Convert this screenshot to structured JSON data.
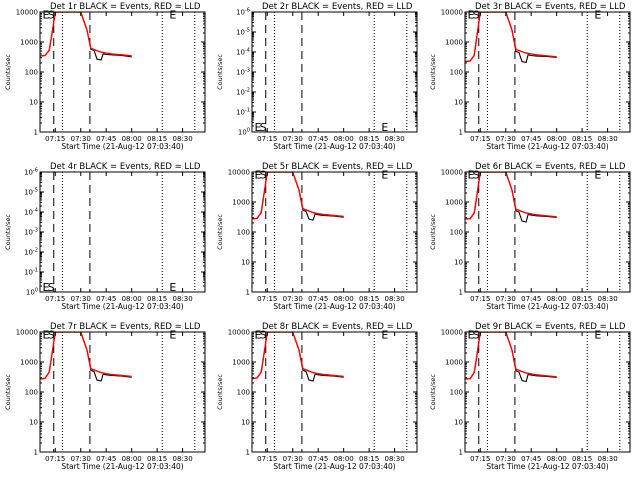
{
  "figure": {
    "colors": {
      "events": "#000000",
      "lld": "#ff0000",
      "axes": "#000000",
      "background": "#ffffff"
    },
    "grid": false,
    "legend": "none"
  },
  "chart_data": [
    {
      "type": "line",
      "title": "Det 1r BLACK = Events, RED = LLD",
      "xlabel": "Start Time (21-Aug-12 07:03:40)",
      "ylabel": "Counts/sec",
      "xlim": [
        7.1,
        8.72
      ],
      "ylim": [
        1,
        12000
      ],
      "yscale": "log",
      "xticks": [
        "07:15",
        "07:30",
        "07:45",
        "08:00",
        "08:15",
        "08:30"
      ],
      "yticks": [
        "1",
        "10",
        "100",
        "1000",
        "10000"
      ],
      "dashed_lines": [
        7.235,
        7.59
      ],
      "dotted_lines": [
        7.32,
        8.3,
        8.62
      ],
      "annotations": [
        {
          "text": "E",
          "x": 7.125,
          "y": 10000
        },
        {
          "text": "S",
          "x": 7.175,
          "y": 10000
        },
        {
          "text": "E",
          "x": 8.37,
          "y": 10000
        }
      ],
      "series": [
        {
          "name": "Events",
          "x": [
            7.1,
            7.15,
            7.19,
            7.21,
            7.25,
            7.4,
            7.5,
            7.56,
            7.6,
            7.63,
            7.66,
            7.7,
            7.72,
            7.75,
            7.8,
            7.9,
            8.0
          ],
          "y": [
            380,
            400,
            600,
            1500,
            12000,
            12000,
            12000,
            3000,
            650,
            600,
            300,
            280,
            450,
            430,
            420,
            400,
            360
          ]
        },
        {
          "name": "LLD",
          "x": [
            7.1,
            7.15,
            7.19,
            7.21,
            7.25,
            7.4,
            7.5,
            7.56,
            7.6,
            7.65,
            7.7,
            7.75,
            7.8,
            7.9,
            8.0
          ],
          "y": [
            380,
            400,
            600,
            1500,
            12000,
            12000,
            12000,
            3000,
            700,
            600,
            520,
            480,
            450,
            420,
            390
          ]
        }
      ]
    },
    {
      "type": "line",
      "title": "Det 2r BLACK = Events, RED = LLD",
      "xlabel": "Start Time (21-Aug-12 07:03:40)",
      "ylabel": "Counts/sec",
      "xlim": [
        7.1,
        8.72
      ],
      "ylim": [
        1,
        1000000
      ],
      "yscale": "log",
      "xticks": [
        "07:15",
        "07:30",
        "07:45",
        "08:00",
        "08:15",
        "08:30"
      ],
      "yticks": [
        "10^0",
        "10^-1",
        "10^-2",
        "10^-3",
        "10^-4",
        "10^-5",
        "10^-6"
      ],
      "dashed_lines": [
        7.235,
        7.59
      ],
      "dotted_lines": [
        7.32,
        8.3,
        8.62
      ],
      "annotations": [
        {
          "text": "E",
          "x": 7.125,
          "y": 1.8
        },
        {
          "text": "S",
          "x": 7.175,
          "y": 1.8
        },
        {
          "text": "E",
          "x": 8.37,
          "y": 1.8
        }
      ],
      "series": []
    },
    {
      "type": "line",
      "title": "Det 3r BLACK = Events, RED = LLD",
      "xlabel": "Start Time (21-Aug-12 07:03:40)",
      "ylabel": "Counts/sec",
      "xlim": [
        7.1,
        8.72
      ],
      "ylim": [
        1,
        12000
      ],
      "yscale": "log",
      "xticks": [
        "07:15",
        "07:30",
        "07:45",
        "08:00",
        "08:15",
        "08:30"
      ],
      "yticks": [
        "1",
        "10",
        "100",
        "1000",
        "10000"
      ],
      "dashed_lines": [
        7.235,
        7.59
      ],
      "dotted_lines": [
        7.32,
        8.3,
        8.62
      ],
      "annotations": [
        {
          "text": "E",
          "x": 7.125,
          "y": 10000
        },
        {
          "text": "S",
          "x": 7.175,
          "y": 10000
        },
        {
          "text": "E",
          "x": 8.37,
          "y": 10000
        }
      ],
      "series": [
        {
          "name": "Events",
          "x": [
            7.1,
            7.15,
            7.19,
            7.21,
            7.25,
            7.4,
            7.5,
            7.56,
            7.6,
            7.63,
            7.66,
            7.7,
            7.72,
            7.75,
            7.8,
            7.9,
            8.0
          ],
          "y": [
            250,
            260,
            400,
            1200,
            12000,
            12000,
            12000,
            3000,
            550,
            500,
            250,
            230,
            420,
            400,
            380,
            370,
            340
          ]
        },
        {
          "name": "LLD",
          "x": [
            7.1,
            7.15,
            7.19,
            7.21,
            7.25,
            7.4,
            7.5,
            7.56,
            7.6,
            7.65,
            7.7,
            7.75,
            7.8,
            7.9,
            8.0
          ],
          "y": [
            250,
            260,
            400,
            1200,
            12000,
            12000,
            12000,
            3000,
            650,
            550,
            480,
            450,
            420,
            390,
            360
          ]
        }
      ]
    },
    {
      "type": "line",
      "title": "Det 4r BLACK = Events, RED = LLD",
      "xlabel": "Start Time (21-Aug-12 07:03:40)",
      "ylabel": "Counts/sec",
      "xlim": [
        7.1,
        8.72
      ],
      "ylim": [
        1,
        1000000
      ],
      "yscale": "log",
      "xticks": [
        "07:15",
        "07:30",
        "07:45",
        "08:00",
        "08:15",
        "08:30"
      ],
      "yticks": [
        "10^0",
        "10^-1",
        "10^-2",
        "10^-3",
        "10^-4",
        "10^-5",
        "10^-6"
      ],
      "dashed_lines": [
        7.235,
        7.59
      ],
      "dotted_lines": [
        7.32,
        8.3,
        8.62
      ],
      "annotations": [
        {
          "text": "E",
          "x": 7.125,
          "y": 1.8
        },
        {
          "text": "S",
          "x": 7.175,
          "y": 1.8
        },
        {
          "text": "E",
          "x": 8.37,
          "y": 1.8
        }
      ],
      "series": []
    },
    {
      "type": "line",
      "title": "Det 5r BLACK = Events, RED = LLD",
      "xlabel": "Start Time (21-Aug-12 07:03:40)",
      "ylabel": "Counts/sec",
      "xlim": [
        7.1,
        8.72
      ],
      "ylim": [
        1,
        12000
      ],
      "yscale": "log",
      "xticks": [
        "07:15",
        "07:30",
        "07:45",
        "08:00",
        "08:15",
        "08:30"
      ],
      "yticks": [
        "1",
        "10",
        "100",
        "1000",
        "10000"
      ],
      "dashed_lines": [
        7.235,
        7.59
      ],
      "dotted_lines": [
        7.32,
        8.3,
        8.62
      ],
      "annotations": [
        {
          "text": "E",
          "x": 7.125,
          "y": 10000
        },
        {
          "text": "S",
          "x": 7.175,
          "y": 10000
        },
        {
          "text": "E",
          "x": 8.37,
          "y": 10000
        }
      ],
      "series": [
        {
          "name": "Events",
          "x": [
            7.1,
            7.15,
            7.19,
            7.21,
            7.25,
            7.4,
            7.5,
            7.56,
            7.6,
            7.63,
            7.66,
            7.7,
            7.72,
            7.75,
            7.8,
            7.9,
            8.0
          ],
          "y": [
            300,
            320,
            500,
            1400,
            12000,
            12000,
            12000,
            3000,
            600,
            550,
            300,
            280,
            450,
            420,
            400,
            380,
            350
          ]
        },
        {
          "name": "LLD",
          "x": [
            7.1,
            7.15,
            7.19,
            7.21,
            7.25,
            7.4,
            7.5,
            7.56,
            7.6,
            7.65,
            7.7,
            7.75,
            7.8,
            7.9,
            8.0
          ],
          "y": [
            300,
            320,
            500,
            1400,
            12000,
            12000,
            12000,
            3000,
            680,
            580,
            500,
            460,
            430,
            400,
            370
          ]
        }
      ]
    },
    {
      "type": "line",
      "title": "Det 6r BLACK = Events, RED = LLD",
      "xlabel": "Start Time (21-Aug-12 07:03:40)",
      "ylabel": "Counts/sec",
      "xlim": [
        7.1,
        8.72
      ],
      "ylim": [
        1,
        12000
      ],
      "yscale": "log",
      "xticks": [
        "07:15",
        "07:30",
        "07:45",
        "08:00",
        "08:15",
        "08:30"
      ],
      "yticks": [
        "1",
        "10",
        "100",
        "1000",
        "10000"
      ],
      "dashed_lines": [
        7.235,
        7.59
      ],
      "dotted_lines": [
        7.32,
        8.3,
        8.62
      ],
      "annotations": [
        {
          "text": "E",
          "x": 7.125,
          "y": 10000
        },
        {
          "text": "S",
          "x": 7.175,
          "y": 10000
        },
        {
          "text": "E",
          "x": 8.37,
          "y": 10000
        }
      ],
      "series": [
        {
          "name": "Events",
          "x": [
            7.1,
            7.15,
            7.19,
            7.21,
            7.25,
            7.4,
            7.5,
            7.56,
            7.6,
            7.63,
            7.66,
            7.7,
            7.72,
            7.75,
            7.8,
            7.9,
            8.0
          ],
          "y": [
            300,
            310,
            480,
            1300,
            12000,
            12000,
            12000,
            3000,
            580,
            520,
            260,
            240,
            430,
            410,
            390,
            370,
            340
          ]
        },
        {
          "name": "LLD",
          "x": [
            7.1,
            7.15,
            7.19,
            7.21,
            7.25,
            7.4,
            7.5,
            7.56,
            7.6,
            7.65,
            7.7,
            7.75,
            7.8,
            7.9,
            8.0
          ],
          "y": [
            300,
            310,
            480,
            1300,
            12000,
            12000,
            12000,
            3000,
            660,
            560,
            490,
            450,
            420,
            390,
            360
          ]
        }
      ]
    },
    {
      "type": "line",
      "title": "Det 7r BLACK = Events, RED = LLD",
      "xlabel": "Start Time (21-Aug-12 07:03:40)",
      "ylabel": "Counts/sec",
      "xlim": [
        7.1,
        8.72
      ],
      "ylim": [
        1,
        12000
      ],
      "yscale": "log",
      "xticks": [
        "07:15",
        "07:30",
        "07:45",
        "08:00",
        "08:15",
        "08:30"
      ],
      "yticks": [
        "1",
        "10",
        "100",
        "1000",
        "10000"
      ],
      "dashed_lines": [
        7.235,
        7.59
      ],
      "dotted_lines": [
        7.32,
        8.3,
        8.62
      ],
      "annotations": [
        {
          "text": "E",
          "x": 7.125,
          "y": 10000
        },
        {
          "text": "S",
          "x": 7.175,
          "y": 10000
        },
        {
          "text": "E",
          "x": 8.37,
          "y": 10000
        }
      ],
      "series": [
        {
          "name": "Events",
          "x": [
            7.1,
            7.15,
            7.19,
            7.21,
            7.25,
            7.4,
            7.5,
            7.56,
            7.6,
            7.63,
            7.66,
            7.7,
            7.72,
            7.75,
            7.8,
            7.9,
            8.0
          ],
          "y": [
            300,
            320,
            520,
            1400,
            12000,
            12000,
            12000,
            3000,
            600,
            540,
            280,
            260,
            440,
            420,
            400,
            380,
            350
          ]
        },
        {
          "name": "LLD",
          "x": [
            7.1,
            7.15,
            7.19,
            7.21,
            7.25,
            7.4,
            7.5,
            7.56,
            7.6,
            7.65,
            7.7,
            7.75,
            7.8,
            7.9,
            8.0
          ],
          "y": [
            300,
            320,
            520,
            1400,
            12000,
            12000,
            12000,
            3000,
            680,
            580,
            500,
            460,
            430,
            400,
            370
          ]
        }
      ]
    },
    {
      "type": "line",
      "title": "Det 8r BLACK = Events, RED = LLD",
      "xlabel": "Start Time (21-Aug-12 07:03:40)",
      "ylabel": "Counts/sec",
      "xlim": [
        7.1,
        8.72
      ],
      "ylim": [
        1,
        12000
      ],
      "yscale": "log",
      "xticks": [
        "07:15",
        "07:30",
        "07:45",
        "08:00",
        "08:15",
        "08:30"
      ],
      "yticks": [
        "1",
        "10",
        "100",
        "1000",
        "10000"
      ],
      "dashed_lines": [
        7.235,
        7.59
      ],
      "dotted_lines": [
        7.32,
        8.3,
        8.62
      ],
      "annotations": [
        {
          "text": "E",
          "x": 7.125,
          "y": 10000
        },
        {
          "text": "S",
          "x": 7.175,
          "y": 10000
        },
        {
          "text": "E",
          "x": 8.37,
          "y": 10000
        }
      ],
      "series": [
        {
          "name": "Events",
          "x": [
            7.1,
            7.15,
            7.19,
            7.21,
            7.25,
            7.4,
            7.5,
            7.56,
            7.6,
            7.63,
            7.66,
            7.7,
            7.72,
            7.75,
            7.8,
            7.9,
            8.0
          ],
          "y": [
            310,
            330,
            520,
            1400,
            12000,
            12000,
            12000,
            3000,
            600,
            540,
            280,
            260,
            440,
            420,
            400,
            380,
            350
          ]
        },
        {
          "name": "LLD",
          "x": [
            7.1,
            7.15,
            7.19,
            7.21,
            7.25,
            7.4,
            7.5,
            7.56,
            7.6,
            7.65,
            7.7,
            7.75,
            7.8,
            7.9,
            8.0
          ],
          "y": [
            310,
            330,
            520,
            1400,
            12000,
            12000,
            12000,
            3000,
            680,
            580,
            500,
            460,
            430,
            400,
            370
          ]
        }
      ]
    },
    {
      "type": "line",
      "title": "Det 9r BLACK = Events, RED = LLD",
      "xlabel": "Start Time (21-Aug-12 07:03:40)",
      "ylabel": "Counts/sec",
      "xlim": [
        7.1,
        8.72
      ],
      "ylim": [
        1,
        12000
      ],
      "yscale": "log",
      "xticks": [
        "07:15",
        "07:30",
        "07:45",
        "08:00",
        "08:15",
        "08:30"
      ],
      "yticks": [
        "1",
        "10",
        "100",
        "1000",
        "10000"
      ],
      "dashed_lines": [
        7.235,
        7.59
      ],
      "dotted_lines": [
        7.32,
        8.3,
        8.62
      ],
      "annotations": [
        {
          "text": "E",
          "x": 7.125,
          "y": 10000
        },
        {
          "text": "S",
          "x": 7.175,
          "y": 10000
        },
        {
          "text": "E",
          "x": 8.37,
          "y": 10000
        }
      ],
      "series": [
        {
          "name": "Events",
          "x": [
            7.1,
            7.15,
            7.19,
            7.21,
            7.25,
            7.4,
            7.5,
            7.56,
            7.6,
            7.63,
            7.66,
            7.7,
            7.72,
            7.75,
            7.8,
            7.9,
            8.0
          ],
          "y": [
            300,
            310,
            500,
            1300,
            12000,
            12000,
            12000,
            3000,
            580,
            520,
            270,
            250,
            430,
            410,
            390,
            370,
            340
          ]
        },
        {
          "name": "LLD",
          "x": [
            7.1,
            7.15,
            7.19,
            7.21,
            7.25,
            7.4,
            7.5,
            7.56,
            7.6,
            7.65,
            7.7,
            7.75,
            7.8,
            7.9,
            8.0
          ],
          "y": [
            300,
            310,
            500,
            1300,
            12000,
            12000,
            12000,
            3000,
            660,
            560,
            490,
            450,
            420,
            390,
            360
          ]
        }
      ]
    }
  ]
}
